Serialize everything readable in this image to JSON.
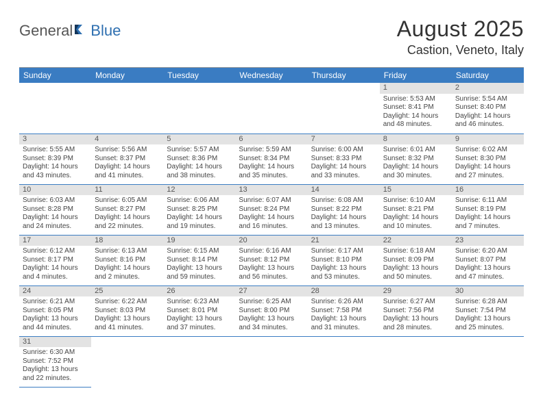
{
  "logo": {
    "part1": "General",
    "part2": "Blue"
  },
  "title": "August 2025",
  "location": "Castion, Veneto, Italy",
  "colors": {
    "header_bg": "#3a7cc2",
    "header_text": "#ffffff",
    "daynum_bg": "#e3e3e3",
    "row_border": "#3a7cc2",
    "body_text": "#444444",
    "logo_blue": "#2e6fb0"
  },
  "weekdays": [
    "Sunday",
    "Monday",
    "Tuesday",
    "Wednesday",
    "Thursday",
    "Friday",
    "Saturday"
  ],
  "weeks": [
    [
      null,
      null,
      null,
      null,
      null,
      {
        "n": "1",
        "sunrise": "5:53 AM",
        "sunset": "8:41 PM",
        "daylight": "14 hours and 48 minutes."
      },
      {
        "n": "2",
        "sunrise": "5:54 AM",
        "sunset": "8:40 PM",
        "daylight": "14 hours and 46 minutes."
      }
    ],
    [
      {
        "n": "3",
        "sunrise": "5:55 AM",
        "sunset": "8:39 PM",
        "daylight": "14 hours and 43 minutes."
      },
      {
        "n": "4",
        "sunrise": "5:56 AM",
        "sunset": "8:37 PM",
        "daylight": "14 hours and 41 minutes."
      },
      {
        "n": "5",
        "sunrise": "5:57 AM",
        "sunset": "8:36 PM",
        "daylight": "14 hours and 38 minutes."
      },
      {
        "n": "6",
        "sunrise": "5:59 AM",
        "sunset": "8:34 PM",
        "daylight": "14 hours and 35 minutes."
      },
      {
        "n": "7",
        "sunrise": "6:00 AM",
        "sunset": "8:33 PM",
        "daylight": "14 hours and 33 minutes."
      },
      {
        "n": "8",
        "sunrise": "6:01 AM",
        "sunset": "8:32 PM",
        "daylight": "14 hours and 30 minutes."
      },
      {
        "n": "9",
        "sunrise": "6:02 AM",
        "sunset": "8:30 PM",
        "daylight": "14 hours and 27 minutes."
      }
    ],
    [
      {
        "n": "10",
        "sunrise": "6:03 AM",
        "sunset": "8:28 PM",
        "daylight": "14 hours and 24 minutes."
      },
      {
        "n": "11",
        "sunrise": "6:05 AM",
        "sunset": "8:27 PM",
        "daylight": "14 hours and 22 minutes."
      },
      {
        "n": "12",
        "sunrise": "6:06 AM",
        "sunset": "8:25 PM",
        "daylight": "14 hours and 19 minutes."
      },
      {
        "n": "13",
        "sunrise": "6:07 AM",
        "sunset": "8:24 PM",
        "daylight": "14 hours and 16 minutes."
      },
      {
        "n": "14",
        "sunrise": "6:08 AM",
        "sunset": "8:22 PM",
        "daylight": "14 hours and 13 minutes."
      },
      {
        "n": "15",
        "sunrise": "6:10 AM",
        "sunset": "8:21 PM",
        "daylight": "14 hours and 10 minutes."
      },
      {
        "n": "16",
        "sunrise": "6:11 AM",
        "sunset": "8:19 PM",
        "daylight": "14 hours and 7 minutes."
      }
    ],
    [
      {
        "n": "17",
        "sunrise": "6:12 AM",
        "sunset": "8:17 PM",
        "daylight": "14 hours and 4 minutes."
      },
      {
        "n": "18",
        "sunrise": "6:13 AM",
        "sunset": "8:16 PM",
        "daylight": "14 hours and 2 minutes."
      },
      {
        "n": "19",
        "sunrise": "6:15 AM",
        "sunset": "8:14 PM",
        "daylight": "13 hours and 59 minutes."
      },
      {
        "n": "20",
        "sunrise": "6:16 AM",
        "sunset": "8:12 PM",
        "daylight": "13 hours and 56 minutes."
      },
      {
        "n": "21",
        "sunrise": "6:17 AM",
        "sunset": "8:10 PM",
        "daylight": "13 hours and 53 minutes."
      },
      {
        "n": "22",
        "sunrise": "6:18 AM",
        "sunset": "8:09 PM",
        "daylight": "13 hours and 50 minutes."
      },
      {
        "n": "23",
        "sunrise": "6:20 AM",
        "sunset": "8:07 PM",
        "daylight": "13 hours and 47 minutes."
      }
    ],
    [
      {
        "n": "24",
        "sunrise": "6:21 AM",
        "sunset": "8:05 PM",
        "daylight": "13 hours and 44 minutes."
      },
      {
        "n": "25",
        "sunrise": "6:22 AM",
        "sunset": "8:03 PM",
        "daylight": "13 hours and 41 minutes."
      },
      {
        "n": "26",
        "sunrise": "6:23 AM",
        "sunset": "8:01 PM",
        "daylight": "13 hours and 37 minutes."
      },
      {
        "n": "27",
        "sunrise": "6:25 AM",
        "sunset": "8:00 PM",
        "daylight": "13 hours and 34 minutes."
      },
      {
        "n": "28",
        "sunrise": "6:26 AM",
        "sunset": "7:58 PM",
        "daylight": "13 hours and 31 minutes."
      },
      {
        "n": "29",
        "sunrise": "6:27 AM",
        "sunset": "7:56 PM",
        "daylight": "13 hours and 28 minutes."
      },
      {
        "n": "30",
        "sunrise": "6:28 AM",
        "sunset": "7:54 PM",
        "daylight": "13 hours and 25 minutes."
      }
    ],
    [
      {
        "n": "31",
        "sunrise": "6:30 AM",
        "sunset": "7:52 PM",
        "daylight": "13 hours and 22 minutes."
      },
      null,
      null,
      null,
      null,
      null,
      null
    ]
  ],
  "labels": {
    "sunrise": "Sunrise: ",
    "sunset": "Sunset: ",
    "daylight": "Daylight: "
  }
}
